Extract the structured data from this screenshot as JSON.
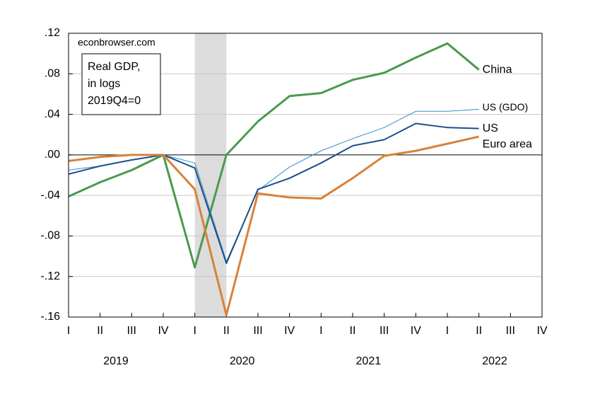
{
  "chart_data": {
    "type": "line",
    "annotations": {
      "source": "econbrowser.com",
      "box": [
        "Real GDP,",
        "in logs",
        "2019Q4=0"
      ]
    },
    "categories": [
      "I",
      "II",
      "III",
      "IV",
      "I",
      "II",
      "III",
      "IV",
      "I",
      "II",
      "III",
      "IV",
      "I",
      "II",
      "III",
      "IV"
    ],
    "years": [
      "2019",
      "2020",
      "2021",
      "2022"
    ],
    "recession": {
      "start": 4,
      "end": 5
    },
    "ylim": [
      -0.16,
      0.12
    ],
    "yticks": [
      {
        "value": -0.16,
        "label": "-.16"
      },
      {
        "value": -0.12,
        "label": "-.12"
      },
      {
        "value": -0.08,
        "label": "-.08"
      },
      {
        "value": -0.04,
        "label": "-.04"
      },
      {
        "value": 0,
        "label": ".00"
      },
      {
        "value": 0.04,
        "label": ".04"
      },
      {
        "value": 0.08,
        "label": ".08"
      },
      {
        "value": 0.12,
        "label": ".12"
      }
    ],
    "grid": true,
    "series": [
      {
        "name": "China",
        "color": "#4a9a4e",
        "width": 3,
        "values": [
          -0.041,
          -0.027,
          -0.015,
          0,
          -0.111,
          0,
          0.033,
          0.058,
          0.061,
          0.074,
          0.081,
          0.096,
          0.11,
          0.084,
          null,
          null
        ]
      },
      {
        "name": "US (GDO)",
        "color": "#2f8fc8",
        "width": 1,
        "values": [
          -0.015,
          -0.011,
          -0.005,
          0,
          -0.008,
          -0.105,
          -0.035,
          -0.012,
          0.004,
          0.016,
          0.027,
          0.043,
          0.043,
          0.045,
          null,
          null
        ]
      },
      {
        "name": "US",
        "color": "#1c4f8a",
        "width": 2,
        "values": [
          -0.019,
          -0.011,
          -0.005,
          0,
          -0.013,
          -0.107,
          -0.034,
          -0.023,
          -0.008,
          0.009,
          0.015,
          0.031,
          0.027,
          0.026,
          null,
          null
        ]
      },
      {
        "name": "Euro area",
        "color": "#d7823a",
        "width": 3,
        "values": [
          -0.006,
          -0.002,
          0,
          0,
          -0.034,
          -0.158,
          -0.038,
          -0.042,
          -0.043,
          -0.023,
          -0.001,
          0.004,
          0.011,
          0.018,
          null,
          null
        ]
      }
    ]
  }
}
